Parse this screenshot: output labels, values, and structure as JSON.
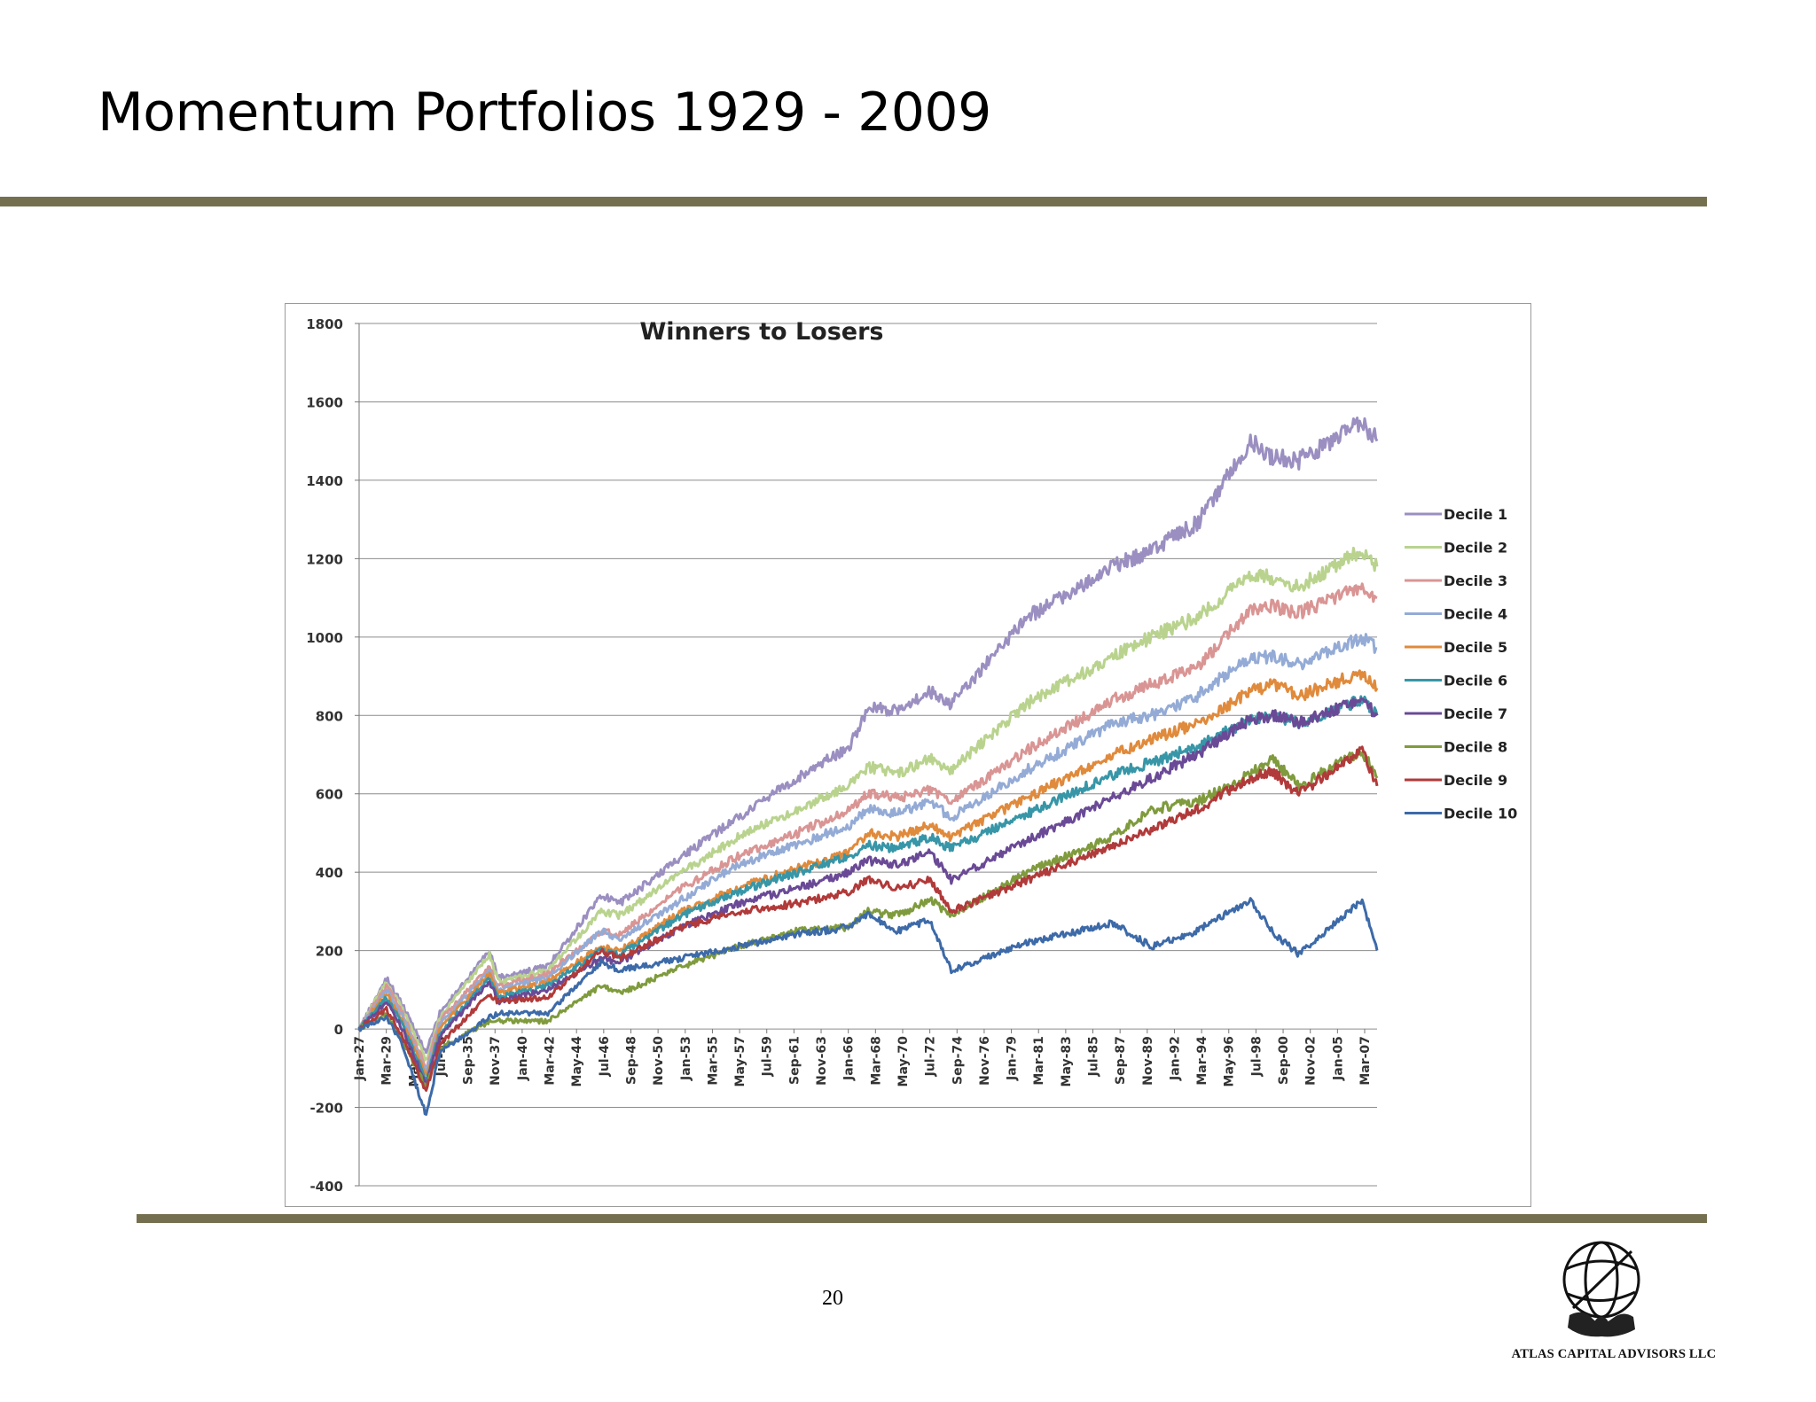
{
  "slide": {
    "title": "Momentum Portfolios 1929 - 2009",
    "page_number": "20",
    "company": "ATLAS CAPITAL ADVISORS LLC"
  },
  "colors": {
    "rule": "#74704f",
    "grid": "#8c8c8c",
    "series": [
      "#9b8fc1",
      "#b9d38e",
      "#d99594",
      "#94abd6",
      "#e08a3c",
      "#3796a7",
      "#6a4a96",
      "#7f9b3d",
      "#b13a3a",
      "#3d6aa8"
    ]
  },
  "chart_data": {
    "type": "line",
    "title": "Winners to Losers",
    "xlabel": "",
    "ylabel": "",
    "ylim": [
      -400,
      1800
    ],
    "yticks": [
      -400,
      -200,
      0,
      200,
      400,
      600,
      800,
      1000,
      1200,
      1400,
      1600,
      1800
    ],
    "grid": true,
    "legend_position": "right",
    "x_tick_labels": [
      "Jan-27",
      "Mar-29",
      "May-31",
      "Jul-33",
      "Sep-35",
      "Nov-37",
      "Jan-40",
      "Mar-42",
      "May-44",
      "Jul-46",
      "Sep-48",
      "Nov-50",
      "Jan-53",
      "Mar-55",
      "May-57",
      "Jul-59",
      "Sep-61",
      "Nov-63",
      "Jan-66",
      "Mar-68",
      "May-70",
      "Jul-72",
      "Sep-74",
      "Nov-76",
      "Jan-79",
      "Mar-81",
      "May-83",
      "Jul-85",
      "Sep-87",
      "Nov-89",
      "Jan-92",
      "Mar-94",
      "May-96",
      "Jul-98",
      "Sep-00",
      "Nov-02",
      "Jan-05",
      "Mar-07"
    ],
    "x": [
      1927.0,
      1929.2,
      1930.5,
      1932.4,
      1933.5,
      1937.5,
      1938.2,
      1942.2,
      1946.5,
      1948.0,
      1953.0,
      1957.5,
      1962.3,
      1966.5,
      1968.0,
      1970.4,
      1973.0,
      1974.7,
      1980.8,
      1987.75,
      1990.8,
      1994.5,
      1998.8,
      2000.5,
      2002.7,
      2007.8,
      2009.0
    ],
    "series": [
      {
        "name": "Decile 1",
        "values": [
          0,
          130,
          60,
          -60,
          40,
          200,
          130,
          160,
          340,
          320,
          440,
          540,
          640,
          720,
          820,
          810,
          860,
          830,
          1050,
          1180,
          1220,
          1290,
          1500,
          1460,
          1450,
          1550,
          1500
        ]
      },
      {
        "name": "Decile 2",
        "values": [
          0,
          120,
          50,
          -80,
          30,
          190,
          120,
          150,
          300,
          290,
          400,
          490,
          560,
          620,
          670,
          650,
          690,
          660,
          830,
          950,
          1000,
          1050,
          1160,
          1150,
          1130,
          1220,
          1180
        ]
      },
      {
        "name": "Decile 3",
        "values": [
          0,
          110,
          40,
          -100,
          20,
          160,
          110,
          140,
          250,
          240,
          360,
          440,
          500,
          560,
          600,
          590,
          610,
          580,
          710,
          840,
          880,
          920,
          1070,
          1080,
          1060,
          1130,
          1100
        ]
      },
      {
        "name": "Decile 4",
        "values": [
          0,
          100,
          30,
          -110,
          10,
          150,
          100,
          130,
          250,
          230,
          330,
          420,
          470,
          520,
          560,
          550,
          580,
          540,
          660,
          780,
          800,
          850,
          950,
          950,
          930,
          1000,
          970
        ]
      },
      {
        "name": "Decile 5",
        "values": [
          0,
          90,
          20,
          -120,
          0,
          140,
          90,
          120,
          210,
          200,
          300,
          360,
          410,
          450,
          500,
          490,
          520,
          490,
          590,
          700,
          740,
          780,
          860,
          880,
          850,
          910,
          870
        ]
      },
      {
        "name": "Decile 6",
        "values": [
          0,
          80,
          10,
          -130,
          -10,
          130,
          80,
          110,
          200,
          190,
          290,
          350,
          400,
          440,
          470,
          460,
          490,
          460,
          550,
          650,
          680,
          720,
          790,
          800,
          780,
          840,
          800
        ]
      },
      {
        "name": "Decile 7",
        "values": [
          0,
          70,
          0,
          -140,
          -20,
          120,
          70,
          100,
          180,
          170,
          260,
          320,
          360,
          400,
          430,
          420,
          450,
          380,
          480,
          590,
          640,
          700,
          790,
          800,
          780,
          840,
          800
        ]
      },
      {
        "name": "Decile 8",
        "values": [
          0,
          40,
          -30,
          -150,
          -50,
          20,
          20,
          20,
          110,
          90,
          160,
          210,
          250,
          260,
          300,
          290,
          330,
          290,
          400,
          490,
          560,
          580,
          650,
          690,
          620,
          710,
          640
        ]
      },
      {
        "name": "Decile 9",
        "values": [
          0,
          50,
          -20,
          -160,
          -40,
          90,
          70,
          80,
          200,
          180,
          260,
          300,
          320,
          350,
          380,
          360,
          380,
          300,
          380,
          470,
          510,
          560,
          640,
          660,
          600,
          710,
          620
        ]
      },
      {
        "name": "Decile 10",
        "values": [
          0,
          30,
          -40,
          -220,
          -60,
          30,
          40,
          40,
          170,
          150,
          180,
          210,
          240,
          260,
          290,
          250,
          280,
          150,
          220,
          270,
          210,
          250,
          330,
          250,
          190,
          330,
          200
        ]
      }
    ]
  }
}
